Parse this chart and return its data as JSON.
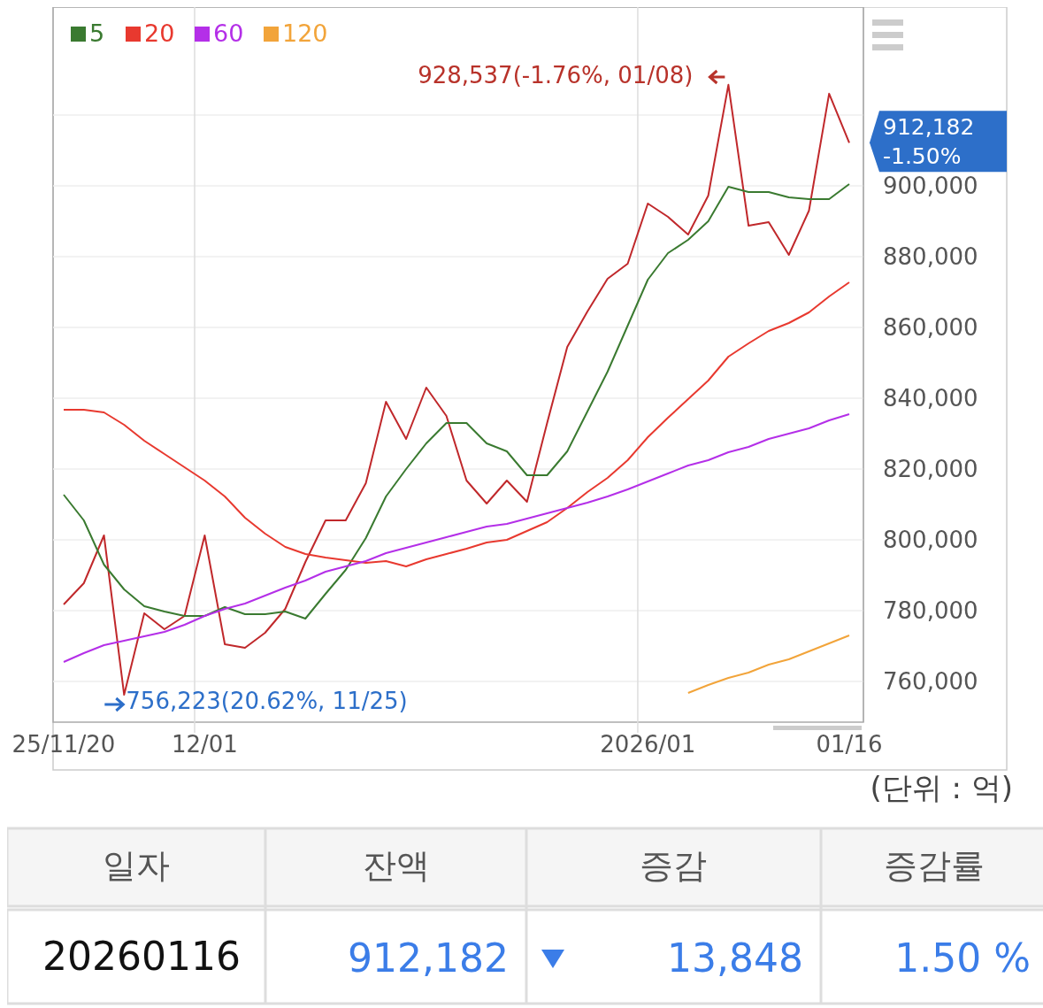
{
  "chart_data": {
    "type": "line",
    "categories": [
      "25/11/20",
      null,
      null,
      null,
      null,
      null,
      null,
      "12/01",
      null,
      null,
      null,
      null,
      null,
      null,
      null,
      null,
      null,
      null,
      null,
      null,
      null,
      null,
      null,
      null,
      null,
      null,
      null,
      null,
      null,
      "2026/01",
      null,
      null,
      null,
      null,
      null,
      null,
      null,
      null,
      null,
      "01/16"
    ],
    "series": [
      {
        "color": "#c0282b",
        "values": [
          781750,
          787750,
          801250,
          756223,
          779250,
          774750,
          778500,
          801250,
          770500,
          769500,
          773750,
          780500,
          793750,
          805500,
          805500,
          816000,
          839000,
          828500,
          843000,
          835000,
          816750,
          810250,
          816750,
          810750,
          833000,
          854500,
          864500,
          873750,
          878000,
          895000,
          891250,
          886250,
          897250,
          928537,
          888750,
          889750,
          880500,
          893000,
          926030,
          912182
        ]
      },
      {
        "name": "5",
        "color": "#3a7a30",
        "values": [
          812750,
          805500,
          793000,
          786000,
          781250,
          779750,
          778500,
          778500,
          781000,
          779000,
          779000,
          779750,
          777750,
          784750,
          791500,
          800500,
          812250,
          820000,
          827250,
          833000,
          833000,
          827250,
          825000,
          818250,
          818250,
          825000,
          836250,
          847500,
          860500,
          873500,
          881000,
          884750,
          890000,
          899750,
          898250,
          898250,
          896750,
          896250,
          896250,
          900500
        ]
      },
      {
        "name": "20",
        "color": "#e8392f",
        "values": [
          836750,
          836750,
          836000,
          832500,
          828000,
          824250,
          820500,
          816750,
          812250,
          806250,
          801750,
          798000,
          796000,
          795000,
          794250,
          793500,
          794000,
          792500,
          794500,
          796000,
          797500,
          799250,
          800000,
          802500,
          805000,
          809000,
          813500,
          817500,
          822500,
          829000,
          834500,
          839750,
          845000,
          851750,
          855500,
          859000,
          861250,
          864250,
          868750,
          872750
        ]
      },
      {
        "name": "60",
        "color": "#b42fe8",
        "values": [
          765500,
          768000,
          770250,
          771500,
          772750,
          774000,
          776000,
          778500,
          780500,
          782000,
          784250,
          786500,
          788500,
          791000,
          792500,
          794000,
          796250,
          797750,
          799250,
          800750,
          802250,
          803750,
          804500,
          806000,
          807500,
          809000,
          810500,
          812250,
          814250,
          816500,
          818750,
          821000,
          822500,
          824750,
          826250,
          828500,
          830000,
          831500,
          833750,
          835500
        ]
      },
      {
        "name": "120",
        "color": "#f2a43a",
        "values": [
          null,
          null,
          null,
          null,
          null,
          null,
          null,
          null,
          null,
          null,
          null,
          null,
          null,
          null,
          null,
          null,
          null,
          null,
          null,
          null,
          null,
          null,
          null,
          null,
          null,
          null,
          null,
          null,
          null,
          null,
          null,
          756750,
          759000,
          761000,
          762500,
          764750,
          766250,
          768500,
          770750,
          773000
        ]
      }
    ],
    "ylim": [
      748500,
      950500
    ],
    "yticks": [
      {
        "value": 760000,
        "label": "760,000"
      },
      {
        "value": 780000,
        "label": "780,000"
      },
      {
        "value": 800000,
        "label": "800,000"
      },
      {
        "value": 820000,
        "label": "820,000"
      },
      {
        "value": 840000,
        "label": "840,000"
      },
      {
        "value": 860000,
        "label": "860,000"
      },
      {
        "value": 880000,
        "label": "880,000"
      },
      {
        "value": 900000,
        "label": "900,000"
      },
      {
        "value": 920000,
        "label": null
      }
    ],
    "grid": true,
    "legend": "top left",
    "marker": "none",
    "line_style": "solid",
    "annotations": [
      "928,537(-1.76%, 01/08)",
      "756,223(20.62%, 11/25)",
      "912,182",
      "-1.50%",
      "(단위 : 억)",
      "일자",
      "잔액",
      "증감",
      "증감률",
      "20260116",
      "912,182",
      "13,848",
      "1.50 %"
    ]
  }
}
